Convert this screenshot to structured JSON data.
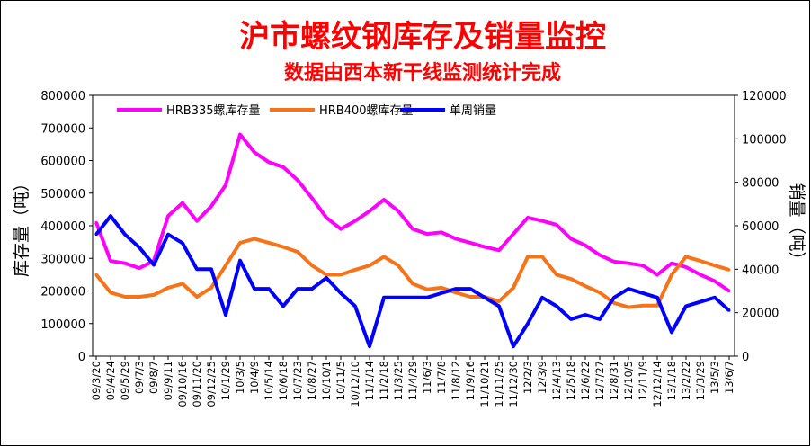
{
  "chart_data": {
    "type": "line",
    "title": "沪市螺纹钢库存及销量监控",
    "subtitle": "数据由西本新干线监测统计完成",
    "ylabel_left": "库存量（吨）",
    "ylabel_right": "销量（吨）",
    "ylim_left": [
      0,
      800000
    ],
    "ylim_right": [
      0,
      120000
    ],
    "yticks_left": [
      "0",
      "100000",
      "200000",
      "300000",
      "400000",
      "500000",
      "600000",
      "700000",
      "800000"
    ],
    "yticks_right": [
      "0",
      "20000",
      "40000",
      "60000",
      "80000",
      "100000",
      "120000"
    ],
    "legend_position": "top-left",
    "grid": false,
    "categories": [
      "09/3/20",
      "09/4/24",
      "09/5/29",
      "09/7/3",
      "09/8/7",
      "09/9/11",
      "09/10/16",
      "09/11/20",
      "09/12/25",
      "10/1/29",
      "10/3/5",
      "10/4/9",
      "10/5/14",
      "10/6/18",
      "10/7/23",
      "10/8/27",
      "10/10/1",
      "10/11/5",
      "10/12/10",
      "11/1/14",
      "11/2/18",
      "11/3/25",
      "11/4/29",
      "11/6/3",
      "11/7/8",
      "11/8/12",
      "11/9/16",
      "11/10/21",
      "11/11/25",
      "11/12/30",
      "12/2/3",
      "12/3/9",
      "12/4/13",
      "12/5/18",
      "12/6/22",
      "12/7/27",
      "12/8/31",
      "12/10/5",
      "12/11/9",
      "12/12/14",
      "13/1/18",
      "13/2/22",
      "13/3/29",
      "13/5/3",
      "13/6/7"
    ],
    "series": [
      {
        "name": "HRB335螺库存量",
        "axis": "left",
        "color": "#FF00FF",
        "values": [
          410000,
          292000,
          285000,
          270000,
          292000,
          430000,
          470000,
          415000,
          460000,
          525000,
          680000,
          625000,
          595000,
          580000,
          540000,
          485000,
          425000,
          390000,
          415000,
          445000,
          480000,
          445000,
          390000,
          375000,
          380000,
          360000,
          348000,
          335000,
          325000,
          375000,
          425000,
          415000,
          403000,
          360000,
          340000,
          310000,
          290000,
          285000,
          278000,
          250000,
          285000,
          273000,
          250000,
          230000,
          200000
        ]
      },
      {
        "name": "HRB400螺库存量",
        "axis": "left",
        "color": "#F87217",
        "values": [
          250000,
          195000,
          182000,
          182000,
          188000,
          210000,
          222000,
          182000,
          210000,
          278000,
          348000,
          360000,
          348000,
          335000,
          320000,
          278000,
          250000,
          250000,
          265000,
          278000,
          305000,
          278000,
          222000,
          205000,
          210000,
          195000,
          182000,
          182000,
          168000,
          210000,
          305000,
          305000,
          250000,
          237000,
          215000,
          195000,
          163000,
          150000,
          155000,
          155000,
          250000,
          305000,
          292000,
          278000,
          265000
        ]
      },
      {
        "name": "单周销量",
        "axis": "right",
        "color": "#0000FF",
        "values": [
          56000,
          64500,
          56000,
          50000,
          42000,
          56000,
          52000,
          40000,
          40000,
          19000,
          44000,
          31000,
          31000,
          23000,
          31000,
          31000,
          36000,
          29000,
          23000,
          4500,
          27000,
          27000,
          27000,
          27000,
          29000,
          31000,
          31000,
          27000,
          23000,
          4500,
          15000,
          27000,
          23000,
          17000,
          19000,
          17000,
          27000,
          31000,
          29000,
          27000,
          11000,
          23000,
          25000,
          27000,
          21000
        ]
      }
    ]
  }
}
